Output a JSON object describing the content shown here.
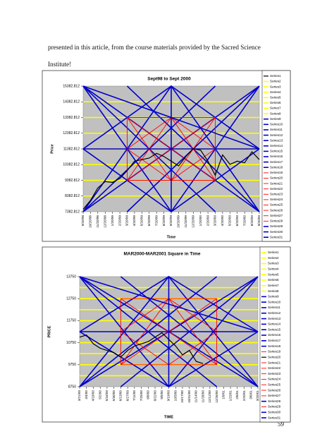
{
  "document": {
    "paragraph": "presented in this article, from the course materials provided by the Sacred Science Institute!",
    "page_number": "59"
  },
  "chart_data": [
    {
      "type": "line",
      "title": "Sept98 to Sept 2000",
      "x_label": "Time",
      "y_label": "Price",
      "categories": [
        "9/20/98",
        "10/20/98",
        "11/20/98",
        "12/20/98",
        "1/20/99",
        "2/20/99",
        "3/20/99",
        "4/20/99",
        "5/20/99",
        "6/20/99",
        "7/20/99",
        "8/20/99",
        "9/20/99",
        "10/20/99",
        "11/20/99",
        "12/20/99",
        "1/20/00",
        "2/20/00",
        "3/20/00",
        "4/20/00",
        "5/20/00",
        "6/20/00",
        "7/20/00",
        "8/20/00",
        "9/20/00"
      ],
      "ylim": [
        7382.812,
        15382.812
      ],
      "yticks": [
        7382.812,
        8382.812,
        9382.812,
        10382.812,
        11382.812,
        12382.812,
        13382.812,
        14382.812,
        15382.812
      ],
      "series": [
        {
          "name": "Series1",
          "color": "#000000",
          "values": [
            7539,
            8100,
            8900,
            9300,
            9250,
            9500,
            10000,
            10600,
            10700,
            10800,
            11100,
            10900,
            10600,
            10300,
            10900,
            11400,
            11300,
            10600,
            9700,
            11000,
            10400,
            10600,
            10500,
            11200,
            10700
          ]
        },
        {
          "name": "Series2",
          "color": "#ffff00",
          "x": [
            "9/20/98",
            "9/20/00"
          ],
          "values": [
            8382.812,
            8382.812
          ]
        },
        {
          "name": "Series3",
          "color": "#ffff00",
          "x": [
            "9/20/98",
            "9/20/00"
          ],
          "values": [
            9382.812,
            9382.812
          ]
        },
        {
          "name": "Series4",
          "color": "#ffff00",
          "x": [
            "9/20/98",
            "9/20/00"
          ],
          "values": [
            10382.812,
            10382.812
          ]
        },
        {
          "name": "Series5",
          "color": "#ffff00",
          "x": [
            "9/20/98",
            "9/20/00"
          ],
          "values": [
            11382.812,
            11382.812
          ]
        },
        {
          "name": "Series6",
          "color": "#ffff00",
          "x": [
            "9/20/98",
            "9/20/00"
          ],
          "values": [
            12382.812,
            12382.812
          ]
        },
        {
          "name": "Series7",
          "color": "#ffff00",
          "x": [
            "9/20/98",
            "9/20/00"
          ],
          "values": [
            13382.812,
            13382.812
          ]
        },
        {
          "name": "Series8",
          "color": "#ffff00",
          "x": [
            "9/20/98",
            "9/20/00"
          ],
          "values": [
            14382.812,
            14382.812
          ]
        },
        {
          "name": "Series9",
          "color": "#0000cc",
          "x": [
            "9/20/98",
            "9/20/00"
          ],
          "values": [
            7382.812,
            15382.812
          ]
        },
        {
          "name": "Series10",
          "color": "#0000cc",
          "x": [
            "9/20/98",
            "9/20/00"
          ],
          "values": [
            15382.812,
            7382.812
          ]
        },
        {
          "name": "Series11",
          "color": "#0000cc",
          "x": [
            "9/20/98",
            "9/20/99",
            "9/20/00"
          ],
          "values": [
            7382.812,
            15382.812,
            7382.812
          ]
        },
        {
          "name": "Series12",
          "color": "#0000cc",
          "x": [
            "9/20/98",
            "9/20/99",
            "9/20/00"
          ],
          "values": [
            15382.812,
            7382.812,
            15382.812
          ]
        },
        {
          "name": "Series13",
          "color": "#0000cc",
          "x": [
            "9/20/98",
            "9/20/99",
            "9/20/00"
          ],
          "values": [
            11382.812,
            15382.812,
            11382.812
          ]
        },
        {
          "name": "Series14",
          "color": "#0000cc",
          "x": [
            "9/20/98",
            "9/20/99",
            "9/20/00"
          ],
          "values": [
            11382.812,
            7382.812,
            11382.812
          ]
        },
        {
          "name": "Series15",
          "color": "#0000cc",
          "x": [
            "9/20/98",
            "3/20/00"
          ],
          "values": [
            15382.812,
            7382.812
          ]
        },
        {
          "name": "Series16",
          "color": "#0000cc",
          "x": [
            "9/20/98",
            "3/20/00"
          ],
          "values": [
            7382.812,
            15382.812
          ]
        },
        {
          "name": "Series17",
          "color": "#0000cc",
          "x": [
            "3/20/99",
            "9/20/00"
          ],
          "values": [
            7382.812,
            15382.812
          ]
        },
        {
          "name": "Series18",
          "color": "#0000cc",
          "x": [
            "3/20/99",
            "9/20/00"
          ],
          "values": [
            15382.812,
            7382.812
          ]
        },
        {
          "name": "Series19",
          "color": "#ff0000",
          "x": [
            "3/20/99",
            "3/20/00"
          ],
          "values": [
            13382.812,
            13382.812
          ]
        },
        {
          "name": "Series20",
          "color": "#ff0000",
          "x": [
            "3/20/99",
            "3/20/00"
          ],
          "values": [
            9382.812,
            9382.812
          ]
        },
        {
          "name": "Series21",
          "color": "#ff0000",
          "x": [
            "3/20/99",
            "3/20/99"
          ],
          "values": [
            9382.812,
            13382.812
          ]
        },
        {
          "name": "Series22",
          "color": "#ff0000",
          "x": [
            "3/20/00",
            "3/20/00"
          ],
          "values": [
            9382.812,
            13382.812
          ]
        },
        {
          "name": "Series23",
          "color": "#ff0000",
          "x": [
            "3/20/99",
            "3/20/00"
          ],
          "values": [
            9382.812,
            13382.812
          ]
        },
        {
          "name": "Series24",
          "color": "#ff0000",
          "x": [
            "3/20/99",
            "3/20/00"
          ],
          "values": [
            13382.812,
            9382.812
          ]
        },
        {
          "name": "Series25",
          "color": "#ff0000",
          "x": [
            "3/20/99",
            "9/20/99",
            "3/20/00"
          ],
          "values": [
            11382.812,
            13382.812,
            11382.812
          ]
        },
        {
          "name": "Series26",
          "color": "#ff0000",
          "x": [
            "3/20/99",
            "9/20/99",
            "3/20/00"
          ],
          "values": [
            11382.812,
            9382.812,
            11382.812
          ]
        },
        {
          "name": "Series27",
          "color": "#ff0000",
          "x": [
            "3/20/99",
            "9/20/99",
            "3/20/00"
          ],
          "values": [
            9382.812,
            13382.812,
            9382.812
          ]
        },
        {
          "name": "Series28",
          "color": "#ff0000",
          "x": [
            "3/20/99",
            "9/20/99",
            "3/20/00"
          ],
          "values": [
            13382.812,
            9382.812,
            13382.812
          ]
        },
        {
          "name": "Series29",
          "color": "#0000cc",
          "x": [
            "9/20/98",
            "9/20/00"
          ],
          "values": [
            11382.812,
            11382.812
          ]
        },
        {
          "name": "Series30",
          "color": "#0000cc",
          "x": [
            "9/20/99",
            "9/20/99"
          ],
          "values": [
            7382.812,
            15382.812
          ]
        },
        {
          "name": "Series31",
          "color": "#0000cc",
          "x": [
            "9/20/98",
            "9/20/00"
          ],
          "values": [
            15382.812,
            11382.812
          ]
        }
      ]
    },
    {
      "type": "line",
      "title": "MAR2000-MAR2001 Square in Time",
      "x_label": "TIME",
      "y_label": "PRICE",
      "categories": [
        "3/21/00",
        "4/4/00",
        "4/18/00",
        "5/2/00",
        "5/16/00",
        "5/30/00",
        "6/13/00",
        "6/27/00",
        "7/11/00",
        "7/25/00",
        "8/8/00",
        "8/22/00",
        "9/5/00",
        "9/19/00",
        "10/3/00",
        "10/17/00",
        "10/31/00",
        "11/14/00",
        "11/28/00",
        "12/12/00",
        "12/26/00",
        "1/9/01",
        "1/23/01",
        "2/6/01",
        "2/20/01",
        "3/6/01",
        "3/20/01"
      ],
      "ylim": [
        8750,
        13750
      ],
      "yticks": [
        8750,
        9750,
        10750,
        11750,
        12750,
        13750
      ],
      "series": [
        {
          "name": "Series1",
          "color": "#ffff00",
          "x": [
            "3/21/00",
            "3/20/01"
          ],
          "values": [
            9250,
            9250
          ]
        },
        {
          "name": "Series2",
          "color": "#ffff00",
          "x": [
            "3/21/00",
            "3/20/01"
          ],
          "values": [
            9750,
            9750
          ]
        },
        {
          "name": "Series3",
          "color": "#ffff00",
          "x": [
            "3/21/00",
            "3/20/01"
          ],
          "values": [
            10250,
            10250
          ]
        },
        {
          "name": "Series4",
          "color": "#ffff00",
          "x": [
            "3/21/00",
            "3/20/01"
          ],
          "values": [
            10750,
            10750
          ]
        },
        {
          "name": "Series5",
          "color": "#ffff00",
          "x": [
            "3/21/00",
            "3/20/01"
          ],
          "values": [
            11750,
            11750
          ]
        },
        {
          "name": "Series6",
          "color": "#ffff00",
          "x": [
            "3/21/00",
            "3/20/01"
          ],
          "values": [
            12250,
            12250
          ]
        },
        {
          "name": "Series7",
          "color": "#ffff00",
          "x": [
            "3/21/00",
            "3/20/01"
          ],
          "values": [
            12750,
            12750
          ]
        },
        {
          "name": "Series8",
          "color": "#ffff00",
          "x": [
            "3/21/00",
            "3/20/01"
          ],
          "values": [
            13250,
            13250
          ]
        },
        {
          "name": "Series9",
          "color": "#0000cc",
          "x": [
            "3/21/00",
            "3/20/01"
          ],
          "values": [
            8750,
            13750
          ]
        },
        {
          "name": "Series10",
          "color": "#0000cc",
          "x": [
            "3/21/00",
            "3/20/01"
          ],
          "values": [
            13750,
            8750
          ]
        },
        {
          "name": "Series11",
          "color": "#0000cc",
          "x": [
            "3/21/00",
            "9/19/00",
            "3/20/01"
          ],
          "values": [
            8750,
            13750,
            8750
          ]
        },
        {
          "name": "Series12",
          "color": "#0000cc",
          "x": [
            "3/21/00",
            "9/19/00",
            "3/20/01"
          ],
          "values": [
            13750,
            8750,
            13750
          ]
        },
        {
          "name": "Series13",
          "color": "#0000cc",
          "x": [
            "3/21/00",
            "9/19/00",
            "3/20/01"
          ],
          "values": [
            11250,
            13750,
            11250
          ]
        },
        {
          "name": "Series14",
          "color": "#0000cc",
          "x": [
            "3/21/00",
            "9/19/00",
            "3/20/01"
          ],
          "values": [
            11250,
            8750,
            11250
          ]
        },
        {
          "name": "Series15",
          "color": "#0000cc",
          "x": [
            "3/21/00",
            "12/26/00"
          ],
          "values": [
            13750,
            8750
          ]
        },
        {
          "name": "Series16",
          "color": "#0000cc",
          "x": [
            "3/21/00",
            "12/26/00"
          ],
          "values": [
            8750,
            13750
          ]
        },
        {
          "name": "Series17",
          "color": "#0000cc",
          "x": [
            "6/13/00",
            "3/20/01"
          ],
          "values": [
            8750,
            13750
          ]
        },
        {
          "name": "Series18",
          "color": "#0000cc",
          "x": [
            "6/13/00",
            "3/20/01"
          ],
          "values": [
            13750,
            8750
          ]
        },
        {
          "name": "Series19",
          "color": "#ff0000",
          "x": [
            "6/13/00",
            "12/26/00"
          ],
          "values": [
            12750,
            12750
          ]
        },
        {
          "name": "Series20",
          "color": "#000000",
          "values": [
            11000,
            11100,
            10700,
            10500,
            10400,
            10300,
            10100,
            10400,
            10600,
            10700,
            10800,
            11000,
            11200,
            10900,
            10600,
            10200,
            10400,
            9900,
            9800,
            null,
            null,
            null,
            null,
            null,
            null,
            null,
            null
          ]
        },
        {
          "name": "Series21",
          "color": "#ff0000",
          "x": [
            "6/13/00",
            "12/26/00"
          ],
          "values": [
            9750,
            9750
          ]
        },
        {
          "name": "Series22",
          "color": "#ff0000",
          "x": [
            "6/13/00",
            "6/13/00"
          ],
          "values": [
            9750,
            12750
          ]
        },
        {
          "name": "Series23",
          "color": "#ff0000",
          "x": [
            "12/26/00",
            "12/26/00"
          ],
          "values": [
            9750,
            12750
          ]
        },
        {
          "name": "Series24",
          "color": "#ff0000",
          "x": [
            "6/13/00",
            "12/26/00"
          ],
          "values": [
            9750,
            12750
          ]
        },
        {
          "name": "Series25",
          "color": "#ff0000",
          "x": [
            "6/13/00",
            "12/26/00"
          ],
          "values": [
            12750,
            9750
          ]
        },
        {
          "name": "Series26",
          "color": "#ff0000",
          "x": [
            "6/13/00",
            "9/19/00",
            "12/26/00"
          ],
          "values": [
            11250,
            12750,
            11250
          ]
        },
        {
          "name": "Series27",
          "color": "#ff0000",
          "x": [
            "6/13/00",
            "9/19/00",
            "12/26/00"
          ],
          "values": [
            11250,
            9750,
            11250
          ]
        },
        {
          "name": "Series28",
          "color": "#0000cc",
          "x": [
            "3/21/00",
            "3/20/01"
          ],
          "values": [
            11250,
            11250
          ]
        },
        {
          "name": "Series29",
          "color": "#ff0000",
          "x": [
            "6/13/00",
            "9/19/00",
            "12/26/00"
          ],
          "values": [
            9750,
            12750,
            9750
          ]
        },
        {
          "name": "Series30",
          "color": "#0000cc",
          "x": [
            "9/19/00",
            "9/19/00"
          ],
          "values": [
            8750,
            13750
          ]
        },
        {
          "name": "Series31",
          "color": "#0000cc",
          "x": [
            "3/21/00",
            "3/20/01"
          ],
          "values": [
            13750,
            11250
          ]
        }
      ]
    }
  ]
}
